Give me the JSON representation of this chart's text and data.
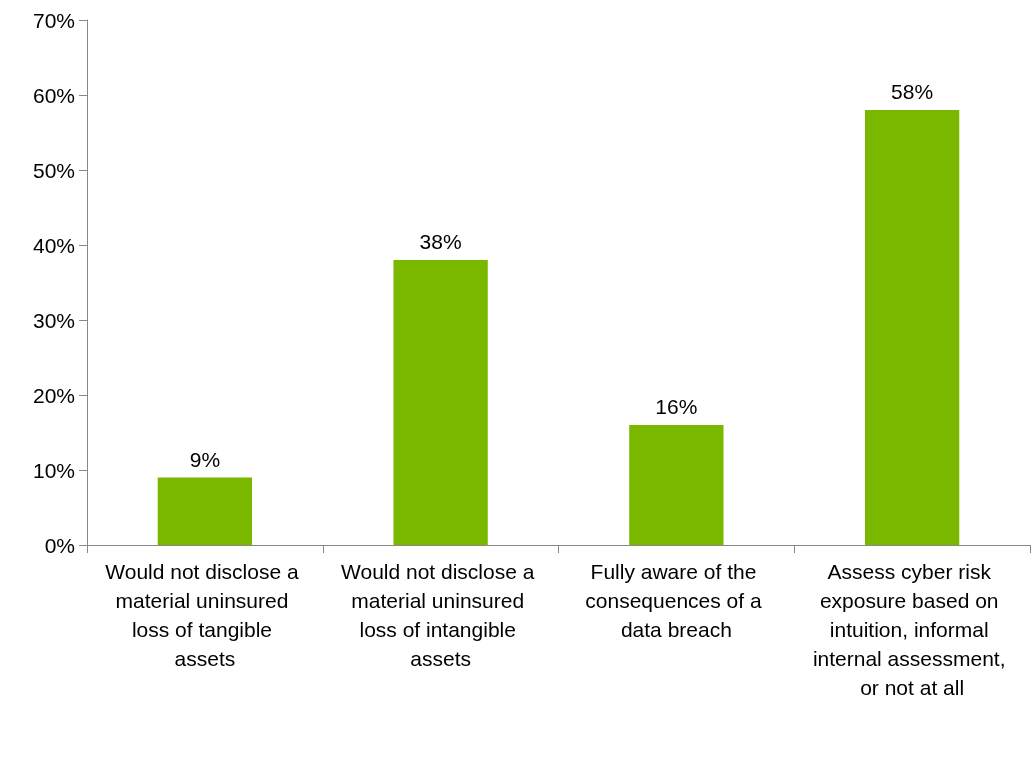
{
  "chart_data": {
    "type": "bar",
    "categories": [
      "Would not disclose a material uninsured loss of tangible assets",
      "Would not disclose a material uninsured loss of intangible assets",
      "Fully aware of the consequences of a data breach",
      "Assess cyber risk exposure based on intuition, informal internal assessment, or not at all"
    ],
    "values": [
      9,
      38,
      16,
      58
    ],
    "value_labels": [
      "9%",
      "38%",
      "16%",
      "58%"
    ],
    "color": "#7ab800",
    "ylim": [
      0,
      70
    ],
    "yticks": [
      {
        "value": 0,
        "label": "0%"
      },
      {
        "value": 10,
        "label": "10%"
      },
      {
        "value": 20,
        "label": "20%"
      },
      {
        "value": 30,
        "label": "30%"
      },
      {
        "value": 40,
        "label": "40%"
      },
      {
        "value": 50,
        "label": "50%"
      },
      {
        "value": 60,
        "label": "60%"
      },
      {
        "value": 70,
        "label": "70%"
      }
    ],
    "grid": false
  }
}
